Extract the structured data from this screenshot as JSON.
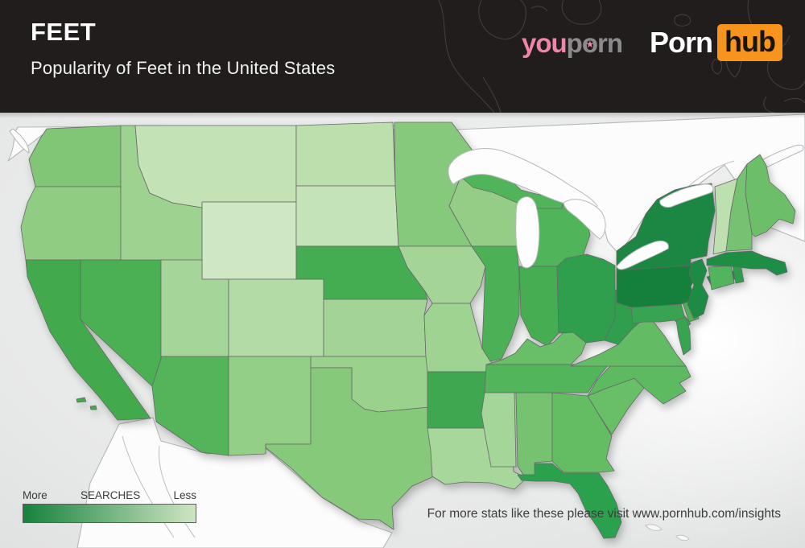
{
  "header": {
    "title": "FEET",
    "subtitle": "Popularity of Feet in the United States",
    "background_color": "#211d1d",
    "world_outline_color": "#423d3d",
    "brand_youporn": {
      "segments": [
        {
          "text": "y",
          "color": "pink"
        },
        {
          "text": "o",
          "color": "pink",
          "star": "dark"
        },
        {
          "text": "u",
          "color": "pink"
        },
        {
          "text": "p",
          "color": "gray"
        },
        {
          "text": "o",
          "color": "gray",
          "star": "pink"
        },
        {
          "text": "rn",
          "color": "gray"
        }
      ]
    },
    "brand_pornhub": {
      "left": "Porn",
      "box": "hub",
      "box_color": "#f7941d"
    },
    "world_outline_paths": [
      "M545,0 C556,24 548,54 562,80 C574,102 596,118 614,140",
      "M598,0 C590,18 598,38 616,46 C634,54 648,42 652,26 C656,10 650,2 646,0",
      "M600,96 C610,112 618,126 622,140",
      "M660,10 C668,6 676,8 680,14",
      "M700,0 C694,14 704,28 720,30 C738,32 750,20 746,5 L744,0",
      "M838,22 C846,15 857,18 858,26 C856,33 844,35 838,28 Z",
      "M906,54 C898,70 902,88 913,96 C921,88 923,70 919,57 Z",
      "M888,74 C882,80 884,90 892,92 C898,88 898,78 893,74 Z",
      "M930,0 C926,20 936,40 951,55 C963,65 976,60 981,44",
      "M958,70 C949,85 954,100 970,108 C986,115 996,110 1000,101",
      "M952,120 C945,130 950,139 962,140",
      "M974,126 C985,120 996,122 1000,128"
    ]
  },
  "legend": {
    "more": "More",
    "label": "SEARCHES",
    "less": "Less",
    "gradient_start": "#17823d",
    "gradient_end": "#cfe5c3"
  },
  "footer": {
    "text": "For more stats like these please visit www.pornhub.com/insights"
  },
  "map": {
    "state_stroke": "#676868",
    "shapes": {
      "canada": [
        "M10,200 C20,180 16,166 22,158 L520,156 L545,162 L1000,142 L1000,300 L950,280 L925,240 L900,205 L860,235 L830,250 L800,270 L780,300 L768,315 L755,300 L745,262 L720,243 L700,248 L660,222 L620,200 L580,192 L545,162 L300,158 L60,162 Z",
        "M16,160 C26,168 36,178 36,190 C28,186 18,172 12,163 Z",
        "M920,216 C942,200 966,188 988,181 C996,179 1000,181 997,187 C974,197 948,210 926,221 Z"
      ],
      "mexico": [
        "M96,681 L112,600 L148,527 L190,519 L200,548 L258,564 L330,557 L400,618 L448,648 L487,662 L476,681 Z"
      ],
      "detail_lines": [
        "M855,232 C872,216 892,206 912,200",
        "M500,168 C515,176 532,170 544,178",
        "M152,542 C164,586 188,626 216,668",
        "M198,554 C194,590 214,628 242,668"
      ],
      "islands": [
        "M762,637 c6,-4 14,-2 18,3 c-6,3 -14,1 -18,-3 Z",
        "M802,653 c8,-3 16,0 20,5 c-7,3 -15,1 -20,-5 Z",
        "M840,666 c7,-2 13,0 16,4 c-5,3 -12,2 -16,-4 Z"
      ],
      "lakes": [
        "M558,206 C570,186 600,180 625,188 C652,197 682,213 706,229 C720,238 736,246 742,256 C730,263 710,256 690,249 C664,239 638,226 614,219 C594,213 576,219 563,229 C556,221 556,213 558,206 Z",
        "M644,250 C652,241 662,243 666,256 C671,276 671,300 667,318 C664,330 656,336 649,331 C642,318 640,296 641,273 C641,261 641,256 644,250 Z",
        "M700,252 C714,243 734,249 747,263 C755,275 753,291 745,297 C737,291 727,279 715,269 C707,263 701,259 700,252 Z",
        "M766,331 C778,317 795,307 812,301 C824,297 832,301 830,309 C818,316 800,323 784,331 C775,335 768,337 766,331 Z",
        "M820,249 C835,239 855,231 875,229 C885,228 888,233 884,239 C868,245 848,251 834,257 C826,259 818,255 820,249 Z"
      ]
    }
  },
  "chart_data": {
    "type": "choropleth",
    "title": "Popularity of Feet in the United States",
    "metric": "relative search volume for 'feet'",
    "scale_note": "level 1 = More searches (dark green), level 7 = Less searches (pale green)",
    "states": [
      {
        "id": "WA",
        "name": "Washington",
        "level": 4,
        "color": "#80c676",
        "polys": [
          "58,160 150,156 150,232 44,232 36,198 50,172"
        ]
      },
      {
        "id": "OR",
        "name": "Oregon",
        "level": 5,
        "color": "#90cd83",
        "polys": [
          "44,232 150,232 150,323 32,323 26,282 34,252"
        ]
      },
      {
        "id": "CA",
        "name": "California",
        "level": 3,
        "color": "#42aa4d",
        "polys": [
          "32,323 100,323 100,397 187,520 146,522 122,492 92,458 62,412 44,368 34,344",
          "95,496 105,494 107,499 96,500",
          "112,505 119,504 120,509 113,509"
        ]
      },
      {
        "id": "NV",
        "name": "Nevada",
        "level": 3,
        "color": "#4bb053",
        "polys": [
          "100,323 200,323 200,446 189,480 100,397"
        ]
      },
      {
        "id": "ID",
        "name": "Idaho",
        "level": 5,
        "color": "#9dd290",
        "polys": [
          "150,156 168,156 172,205 186,240 214,252 251,258 251,323 150,323"
        ]
      },
      {
        "id": "MT",
        "name": "Montana",
        "level": 7,
        "color": "#c3e2b5",
        "polys": [
          "168,156 368,156 368,251 251,251 251,258 214,252 186,240 172,205"
        ]
      },
      {
        "id": "WY",
        "name": "Wyoming",
        "level": 7,
        "color": "#d0e7c4",
        "polys": [
          "251,251 368,251 368,347 251,347"
        ]
      },
      {
        "id": "UT",
        "name": "Utah",
        "level": 6,
        "color": "#a5d598",
        "polys": [
          "200,323 251,323 251,347 284,347 284,443 200,443"
        ]
      },
      {
        "id": "CO",
        "name": "Colorado",
        "level": 6,
        "color": "#b3dba6",
        "polys": [
          "284,347 402,347 402,443 284,443"
        ]
      },
      {
        "id": "AZ",
        "name": "Arizona",
        "level": 3,
        "color": "#53b45a",
        "polys": [
          "200,443 284,443 284,566 250,562 194,524 189,480 200,446"
        ]
      },
      {
        "id": "NM",
        "name": "New Mexico",
        "level": 5,
        "color": "#94cf87",
        "polys": [
          "284,443 386,443 386,552 330,552 330,564 284,566"
        ]
      },
      {
        "id": "ND",
        "name": "North Dakota",
        "level": 7,
        "color": "#bcdfae",
        "polys": [
          "368,156 488,152 491,231 368,231"
        ]
      },
      {
        "id": "SD",
        "name": "South Dakota",
        "level": 7,
        "color": "#c5e3b8",
        "polys": [
          "368,231 491,231 495,306 368,306"
        ]
      },
      {
        "id": "NE",
        "name": "Nebraska",
        "level": 3,
        "color": "#45ad51",
        "polys": [
          "368,306 495,306 506,332 528,362 531,372 402,372 402,347 368,347"
        ]
      },
      {
        "id": "KS",
        "name": "Kansas",
        "level": 6,
        "color": "#a3d495",
        "polys": [
          "402,372 531,372 527,392 529,443 402,443"
        ]
      },
      {
        "id": "OK",
        "name": "Oklahoma",
        "level": 5,
        "color": "#9ad18d",
        "polys": [
          "386,443 529,443 532,448 533,506 470,512 452,508 437,496 437,457 386,457"
        ]
      },
      {
        "id": "TX",
        "name": "Texas",
        "level": 5,
        "color": "#86c97a",
        "polys": [
          "386,457 437,457 437,496 452,508 470,512 533,506 539,514 539,592 512,604 487,630 489,658 471,646 445,645 400,618 362,582 330,556 330,552 386,552"
        ]
      },
      {
        "id": "MN",
        "name": "Minnesota",
        "level": 4,
        "color": "#87c97c",
        "polys": [
          "490,152 561,152 601,206 571,223 558,256 586,306 495,306 491,231"
        ]
      },
      {
        "id": "IA",
        "name": "Iowa",
        "level": 6,
        "color": "#a4d597",
        "polys": [
          "495,306 586,306 603,331 597,356 584,377 537,377 528,362 506,332"
        ]
      },
      {
        "id": "MO",
        "name": "Missouri",
        "level": 5,
        "color": "#9ed392",
        "polys": [
          "537,377 584,377 599,433 611,451 623,447 628,462 531,462 529,443 527,392"
        ]
      },
      {
        "id": "AR",
        "name": "Arkansas",
        "level": 3,
        "color": "#3ea74f",
        "polys": [
          "531,462 628,462 620,492 612,532 531,532"
        ]
      },
      {
        "id": "LA",
        "name": "Louisiana",
        "level": 6,
        "color": "#a7d79a",
        "polys": [
          "531,532 612,532 606,560 636,558 638,586 654,594 639,608 609,600 577,599 553,602 537,592 535,560"
        ]
      },
      {
        "id": "WI",
        "name": "Wisconsin",
        "level": 5,
        "color": "#94ce86",
        "polys": [
          "571,223 601,208 629,219 647,236 652,271 642,306 586,306 558,256"
        ]
      },
      {
        "id": "IL",
        "name": "Illinois",
        "level": 3,
        "color": "#4cb156",
        "polys": [
          "586,306 642,306 645,341 645,391 635,421 623,446 609,449 599,433 603,331"
        ]
      },
      {
        "id": "MI",
        "name": "Michigan",
        "level": 3,
        "color": "#50b45b",
        "polys": [
          "650,331 722,331 726,312 733,292 728,270 716,254 700,246 682,244 668,252 660,276 654,302",
          "575,222 601,208 629,219 647,236 666,241 688,245 700,251 698,259 665,259 640,251 612,239 588,233"
        ]
      },
      {
        "id": "IN",
        "name": "Indiana",
        "level": 3,
        "color": "#46ad52",
        "polys": [
          "645,331 692,331 694,414 680,430 660,419 647,392"
        ]
      },
      {
        "id": "OH",
        "name": "Ohio",
        "level": 2,
        "color": "#2f9f4e",
        "polys": [
          "692,331 703,321 729,316 749,322 764,330 764,396 751,423 728,426 712,413 694,414"
        ]
      },
      {
        "id": "KY",
        "name": "Kentucky",
        "level": 4,
        "color": "#68bf67",
        "polys": [
          "604,453 709,453 722,440 728,426 712,413 699,414 687,426 671,431 655,421 640,439 624,447 611,451"
        ]
      },
      {
        "id": "TN",
        "name": "Tennessee",
        "level": 3,
        "color": "#52b45b",
        "polys": [
          "604,453 756,453 742,470 730,488 602,488"
        ]
      },
      {
        "id": "MS",
        "name": "Mississippi",
        "level": 6,
        "color": "#a5d699",
        "polys": [
          "602,488 639,488 641,580 610,580 604,548 598,514"
        ]
      },
      {
        "id": "AL",
        "name": "Alabama",
        "level": 4,
        "color": "#75c371",
        "polys": [
          "641,488 686,488 686,573 664,575 666,590 650,590 643,579"
        ]
      },
      {
        "id": "GA",
        "name": "Georgia",
        "level": 4,
        "color": "#64bd63",
        "polys": [
          "686,488 730,492 742,512 760,542 753,570 763,585 744,587 700,587 686,573"
        ]
      },
      {
        "id": "FL",
        "name": "Florida",
        "level": 2,
        "color": "#2ba14d",
        "polys": [
          "643,590 650,590 664,590 664,576 686,576 700,588 744,588 755,604 766,626 772,649 764,668 750,669 742,655 728,635 718,613 708,601 688,598 664,598 648,597"
        ]
      },
      {
        "id": "SC",
        "name": "South Carolina",
        "level": 4,
        "color": "#69bf67",
        "polys": [
          "730,492 752,483 788,470 800,482 780,508 760,540 742,512"
        ]
      },
      {
        "id": "NC",
        "name": "North Carolina",
        "level": 4,
        "color": "#5dba60",
        "polys": [
          "742,472 758,455 852,455 858,468 844,476 852,486 824,502 800,482 788,470 752,483 730,492"
        ]
      },
      {
        "id": "VA",
        "name": "Virginia",
        "level": 4,
        "color": "#63bc63",
        "polys": [
          "709,455 745,440 768,428 786,408 798,398 812,400 826,418 840,440 852,455"
        ]
      },
      {
        "id": "WV",
        "name": "West Virginia",
        "level": 2,
        "color": "#2f9f4e",
        "polys": [
          "764,362 772,352 782,368 782,384 806,366 814,376 796,398 786,408 768,428 751,423 764,396"
        ]
      },
      {
        "id": "MD",
        "name": "Maryland",
        "level": 2,
        "color": "#38a452",
        "polys": [
          "784,382 846,378 850,392 858,402 850,410 838,398 820,400 800,400 786,402",
          "840,398 852,394 857,412 858,434 849,441 843,418"
        ]
      },
      {
        "id": "DE",
        "name": "Delaware",
        "level": 3,
        "color": "#4fae57",
        "polys": [
          "848,376 862,374 868,396 856,400"
        ]
      },
      {
        "id": "PA",
        "name": "Pennsylvania",
        "level": 1,
        "color": "#15803c",
        "polys": [
          "766,336 858,326 868,338 858,356 864,372 846,378 784,382 766,376"
        ]
      },
      {
        "id": "NY",
        "name": "New York",
        "level": 1,
        "color": "#1b8742",
        "polys": [
          "766,336 766,312 790,294 802,266 816,248 838,236 862,230 884,228 888,262 880,300 878,318 858,322 858,330",
          "878,344 916,336 922,344 884,356"
        ]
      },
      {
        "id": "NJ",
        "name": "New Jersey",
        "level": 1,
        "color": "#1e8b44",
        "polys": [
          "860,326 872,322 878,336 872,354 880,368 874,390 862,396 854,378 862,354 856,340"
        ]
      },
      {
        "id": "CT",
        "name": "Connecticut",
        "level": 3,
        "color": "#52b45c",
        "polys": [
          "880,332 908,330 912,352 884,360"
        ]
      },
      {
        "id": "RI",
        "name": "Rhode Island",
        "level": 2,
        "color": "#2f9d4d",
        "polys": [
          "910,330 920,328 924,350 914,352"
        ]
      },
      {
        "id": "MA",
        "name": "Massachusetts",
        "level": 1,
        "color": "#1f8e45",
        "polys": [
          "878,322 902,314 934,312 948,318 962,322 975,326 978,338 965,342 952,334 934,334 908,331 878,330"
        ]
      },
      {
        "id": "VT",
        "name": "Vermont",
        "level": 6,
        "color": "#bedfb0",
        "polys": [
          "888,232 916,222 908,262 902,312 886,316 890,270"
        ]
      },
      {
        "id": "NH",
        "name": "New Hampshire",
        "level": 4,
        "color": "#75c372",
        "polys": [
          "916,222 928,204 926,240 934,290 934,310 902,312 908,262"
        ]
      },
      {
        "id": "ME",
        "name": "Maine",
        "level": 4,
        "color": "#6cbf68",
        "polys": [
          "928,204 944,192 952,206 956,226 975,242 988,262 985,278 968,272 952,288 938,294 934,290 926,240"
        ]
      }
    ]
  }
}
